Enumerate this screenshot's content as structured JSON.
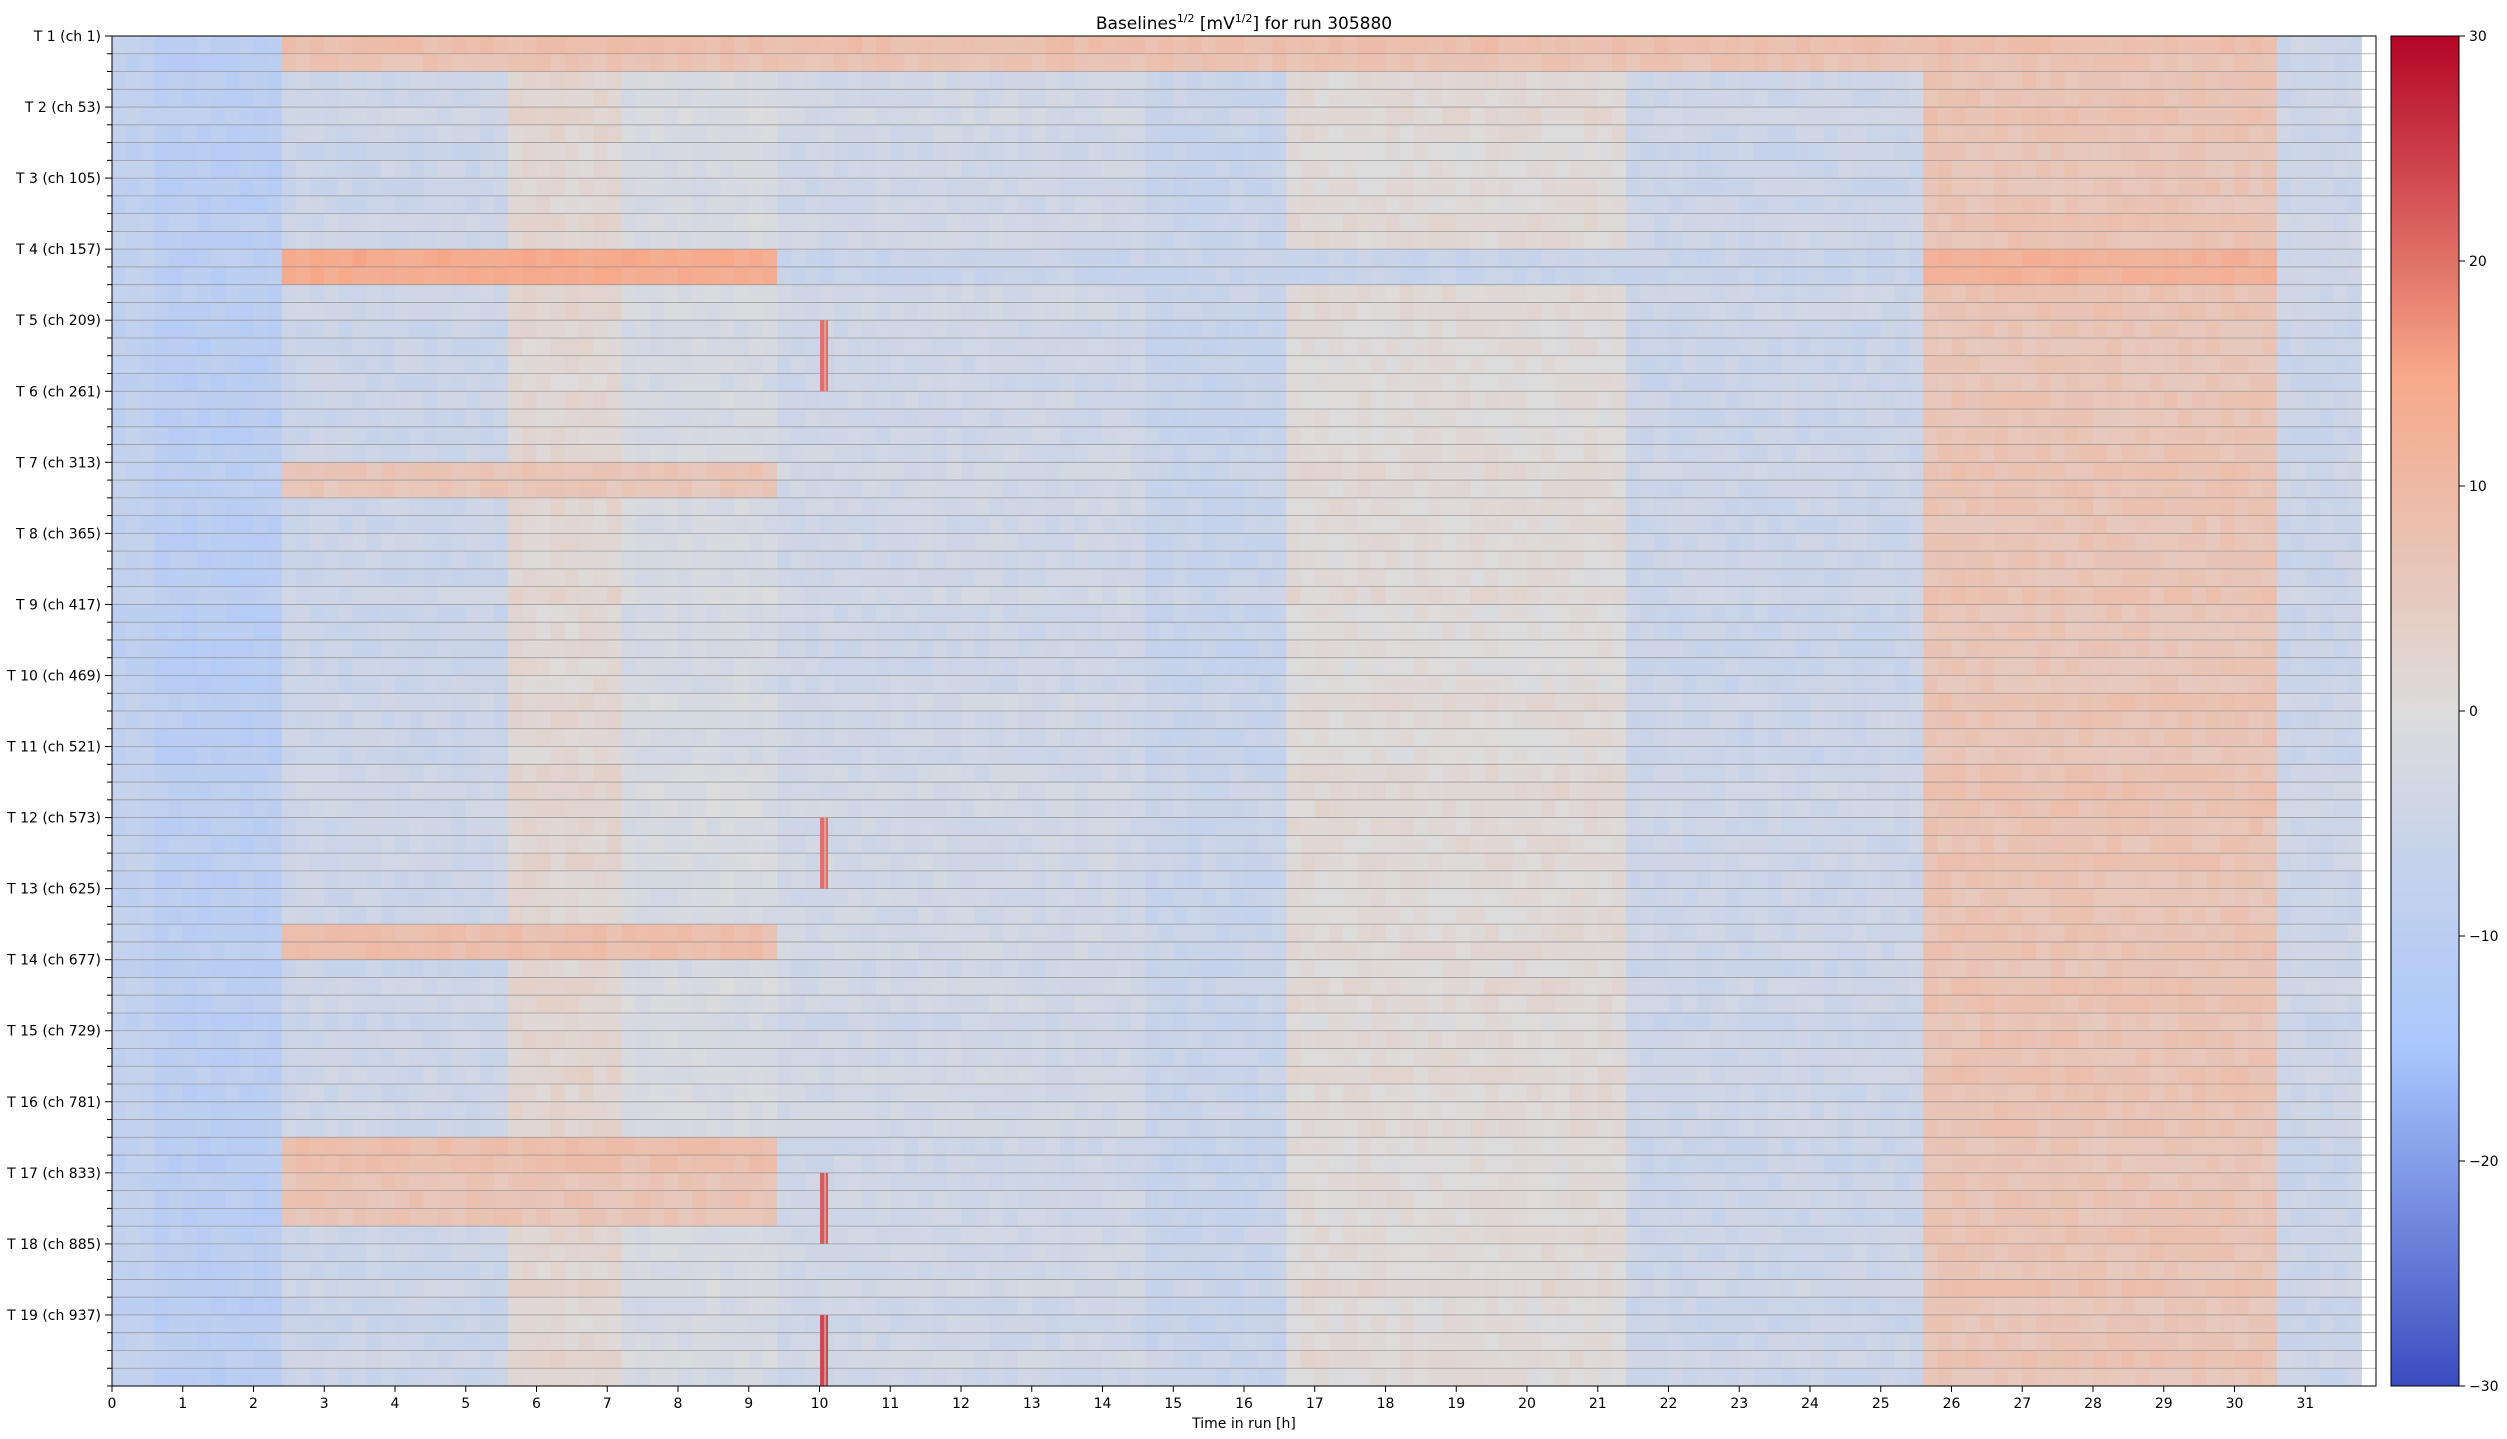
{
  "chart_data": {
    "type": "heatmap",
    "title_main": "Baselines",
    "title_sup1": "1/2",
    "title_mid": " [mV",
    "title_sup2": "1/2",
    "title_end": "] for run 305880",
    "xlabel": "Time in run [h]",
    "ylabel": "",
    "x_range": [
      0,
      32
    ],
    "x_ticks": [
      0,
      1,
      2,
      3,
      4,
      5,
      6,
      7,
      8,
      9,
      10,
      11,
      12,
      13,
      14,
      15,
      16,
      17,
      18,
      19,
      20,
      21,
      22,
      23,
      24,
      25,
      26,
      27,
      28,
      29,
      30,
      31
    ],
    "y_ticks": [
      "T 1 (ch 1)",
      "T 2 (ch 53)",
      "T 3 (ch 105)",
      "T 4 (ch 157)",
      "T 5 (ch 209)",
      "T 6 (ch 261)",
      "T 7 (ch 313)",
      "T 8 (ch 365)",
      "T 9 (ch 417)",
      "T 10 (ch 469)",
      "T 11 (ch 521)",
      "T 12 (ch 573)",
      "T 13 (ch 625)",
      "T 14 (ch 677)",
      "T 15 (ch 729)",
      "T 16 (ch 781)",
      "T 17 (ch 833)",
      "T 18 (ch 885)",
      "T 19 (ch 937)"
    ],
    "rows_per_module": 4,
    "grid": true,
    "colorbar": {
      "colormap": "coolwarm",
      "range": [
        -30,
        30
      ],
      "ticks": [
        30,
        20,
        10,
        0,
        -10,
        -20,
        -30
      ],
      "tick_labels": [
        "30",
        "20",
        "10",
        "0",
        "−10",
        "−20",
        "−30"
      ],
      "colors": [
        "#3b4cc0",
        "#aac7fd",
        "#dddcdc",
        "#f7a889",
        "#b40426"
      ]
    },
    "column_offsets": [
      {
        "x": [
          0,
          0.6
        ],
        "value": -8
      },
      {
        "x": [
          0.6,
          2.2
        ],
        "value": -10
      },
      {
        "x": [
          2.2,
          5.5
        ],
        "value": -5
      },
      {
        "x": [
          5.5,
          7.2
        ],
        "value": 2
      },
      {
        "x": [
          7.2,
          9.3
        ],
        "value": -2
      },
      {
        "x": [
          9.3,
          14.5
        ],
        "value": -4
      },
      {
        "x": [
          14.5,
          16.5
        ],
        "value": -6
      },
      {
        "x": [
          16.5,
          21.3
        ],
        "value": 1
      },
      {
        "x": [
          21.3,
          25.5
        ],
        "value": -5
      },
      {
        "x": [
          25.5,
          30.5
        ],
        "value": 7
      },
      {
        "x": [
          30.5,
          31.8
        ],
        "value": -5
      }
    ],
    "row_band_offsets": [
      {
        "rows": [
          0,
          1
        ],
        "x": [
          2.2,
          30.5
        ],
        "value": 8
      },
      {
        "rows": [
          12,
          13
        ],
        "x": [
          2.2,
          9.3
        ],
        "value": 14
      },
      {
        "rows": [
          12,
          13
        ],
        "x": [
          25.5,
          30.5
        ],
        "value": 12
      },
      {
        "rows": [
          12,
          13
        ],
        "x": [
          9.3,
          25.5
        ],
        "value": -6
      },
      {
        "rows": [
          24,
          25
        ],
        "x": [
          2.2,
          9.3
        ],
        "value": 6
      },
      {
        "rows": [
          50,
          51
        ],
        "x": [
          2.2,
          9.3
        ],
        "value": 8
      },
      {
        "rows": [
          62,
          63
        ],
        "x": [
          2.2,
          9.3
        ],
        "value": 9
      },
      {
        "rows": [
          64,
          66
        ],
        "x": [
          2.4,
          9.3
        ],
        "value": 7
      }
    ],
    "spike_segments": [
      {
        "x": 10.05,
        "rows": [
          16,
          19
        ],
        "value": 20
      },
      {
        "x": 10.05,
        "rows": [
          44,
          47
        ],
        "value": 20
      },
      {
        "x": 10.05,
        "rows": [
          64,
          67
        ],
        "value": 22
      },
      {
        "x": 10.05,
        "rows": [
          72,
          75
        ],
        "value": 24
      }
    ]
  }
}
